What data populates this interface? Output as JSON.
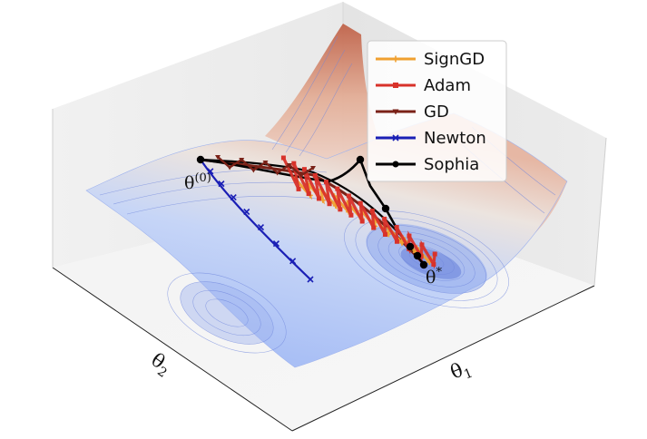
{
  "chart_data": {
    "type": "line",
    "kind": "3d-surface-with-optimizer-trajectories",
    "axes": {
      "x_label": "θ1",
      "y_label": "θ2"
    },
    "annotations": {
      "start": "θ(0)",
      "optimum": "θ*"
    },
    "legend": {
      "placement": "top-right"
    },
    "grid": true,
    "surface_colormap": [
      "#3a4cc0",
      "#b3c9f5",
      "#e8e2dd",
      "#b0472f"
    ],
    "series": [
      {
        "name": "SignGD",
        "color": "#f0a030",
        "marker": "+"
      },
      {
        "name": "Adam",
        "color": "#d8322a",
        "marker": "square"
      },
      {
        "name": "GD",
        "color": "#7a2218",
        "marker": "triangle-down"
      },
      {
        "name": "Newton",
        "color": "#1a1fb5",
        "marker": "x"
      },
      {
        "name": "Sophia",
        "color": "#000000",
        "marker": "circle"
      }
    ]
  }
}
